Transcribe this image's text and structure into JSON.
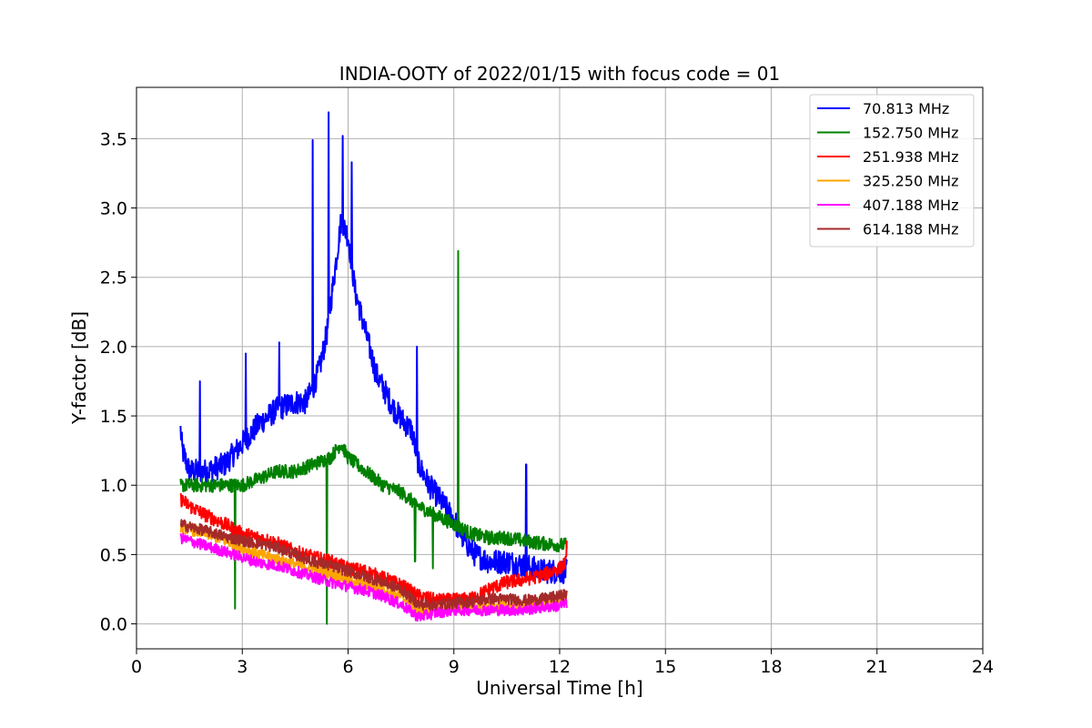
{
  "chart_data": {
    "type": "line",
    "title": "INDIA-OOTY of 2022/01/15 with focus code = 01",
    "xlabel": "Universal Time [h]",
    "ylabel": "Y-factor [dB]",
    "xlim": [
      0,
      24
    ],
    "ylim": [
      -0.18,
      3.87
    ],
    "xticks": [
      0,
      3,
      6,
      9,
      12,
      15,
      18,
      21,
      24
    ],
    "yticks": [
      0.0,
      0.5,
      1.0,
      1.5,
      2.0,
      2.5,
      3.0,
      3.5
    ],
    "ytick_labels": [
      "0.0",
      "0.5",
      "1.0",
      "1.5",
      "2.0",
      "2.5",
      "3.0",
      "3.5"
    ],
    "grid": true,
    "legend_position": "top-right",
    "series": [
      {
        "name": " 70.813 MHz",
        "color": "#0000ff",
        "noise": 0.09,
        "x": [
          1.25,
          1.3,
          1.5,
          2.0,
          2.5,
          3.0,
          3.5,
          4.0,
          4.5,
          4.8,
          5.0,
          5.2,
          5.4,
          5.6,
          5.8,
          6.0,
          6.2,
          6.5,
          6.8,
          7.0,
          7.3,
          7.6,
          7.8,
          8.0,
          8.3,
          8.6,
          9.0,
          9.3,
          9.6,
          10.0,
          10.5,
          11.0,
          11.5,
          12.0,
          12.2
        ],
        "y": [
          1.4,
          1.25,
          1.1,
          1.1,
          1.15,
          1.3,
          1.45,
          1.55,
          1.6,
          1.6,
          1.7,
          1.85,
          2.1,
          2.5,
          2.9,
          2.8,
          2.4,
          2.1,
          1.8,
          1.7,
          1.55,
          1.45,
          1.4,
          1.15,
          1.0,
          0.9,
          0.75,
          0.6,
          0.5,
          0.45,
          0.45,
          0.42,
          0.38,
          0.38,
          0.38
        ],
        "spikes": [
          [
            1.8,
            1.75
          ],
          [
            3.1,
            1.95
          ],
          [
            4.05,
            2.03
          ],
          [
            5.0,
            3.49
          ],
          [
            5.45,
            3.69
          ],
          [
            5.85,
            3.52
          ],
          [
            6.1,
            3.33
          ],
          [
            7.95,
            2.0
          ],
          [
            11.05,
            1.15
          ]
        ]
      },
      {
        "name": "152.750 MHz",
        "color": "#008000",
        "noise": 0.05,
        "x": [
          1.25,
          1.5,
          2.0,
          2.5,
          3.0,
          3.5,
          4.0,
          4.5,
          5.0,
          5.5,
          5.8,
          6.0,
          6.5,
          7.0,
          7.5,
          8.0,
          8.5,
          9.0,
          9.5,
          10.0,
          10.5,
          11.0,
          11.5,
          12.0,
          12.2
        ],
        "y": [
          1.0,
          1.0,
          1.0,
          1.0,
          1.0,
          1.05,
          1.1,
          1.1,
          1.15,
          1.2,
          1.3,
          1.2,
          1.1,
          1.0,
          0.95,
          0.85,
          0.78,
          0.72,
          0.65,
          0.62,
          0.62,
          0.6,
          0.58,
          0.57,
          0.57
        ],
        "spikes": [
          [
            9.12,
            2.69
          ],
          [
            5.4,
            0.0
          ],
          [
            2.8,
            0.11
          ],
          [
            8.4,
            0.4
          ],
          [
            7.9,
            0.45
          ]
        ]
      },
      {
        "name": "251.938 MHz",
        "color": "#ff0000",
        "noise": 0.05,
        "x": [
          1.25,
          1.5,
          2.0,
          2.5,
          3.0,
          3.5,
          4.0,
          4.5,
          5.0,
          5.5,
          6.0,
          6.5,
          7.0,
          7.5,
          8.0,
          8.5,
          9.0,
          9.5,
          10.0,
          10.5,
          11.0,
          11.5,
          12.0,
          12.2
        ],
        "y": [
          0.9,
          0.85,
          0.78,
          0.72,
          0.65,
          0.62,
          0.58,
          0.52,
          0.48,
          0.45,
          0.4,
          0.38,
          0.33,
          0.28,
          0.2,
          0.17,
          0.17,
          0.18,
          0.25,
          0.3,
          0.32,
          0.35,
          0.4,
          0.45
        ],
        "spikes": [
          [
            12.2,
            0.6
          ]
        ]
      },
      {
        "name": "325.250 MHz",
        "color": "#ffa500",
        "noise": 0.04,
        "x": [
          1.25,
          1.5,
          2.0,
          2.5,
          3.0,
          3.5,
          4.0,
          4.5,
          5.0,
          5.5,
          6.0,
          6.5,
          7.0,
          7.5,
          8.0,
          8.5,
          9.0,
          9.5,
          10.0,
          10.5,
          11.0,
          11.5,
          12.0,
          12.2
        ],
        "y": [
          0.7,
          0.68,
          0.65,
          0.6,
          0.55,
          0.5,
          0.47,
          0.43,
          0.4,
          0.36,
          0.32,
          0.28,
          0.25,
          0.2,
          0.1,
          0.1,
          0.12,
          0.12,
          0.12,
          0.13,
          0.13,
          0.15,
          0.16,
          0.18
        ],
        "spikes": []
      },
      {
        "name": "407.188 MHz",
        "color": "#ff00ff",
        "noise": 0.04,
        "x": [
          1.25,
          1.5,
          2.0,
          2.5,
          3.0,
          3.5,
          4.0,
          4.5,
          5.0,
          5.5,
          6.0,
          6.5,
          7.0,
          7.5,
          8.0,
          8.5,
          9.0,
          9.5,
          10.0,
          10.5,
          11.0,
          11.5,
          12.0,
          12.2
        ],
        "y": [
          0.62,
          0.6,
          0.56,
          0.52,
          0.48,
          0.44,
          0.42,
          0.38,
          0.34,
          0.3,
          0.27,
          0.24,
          0.2,
          0.14,
          0.05,
          0.08,
          0.1,
          0.1,
          0.1,
          0.1,
          0.1,
          0.12,
          0.13,
          0.15
        ],
        "spikes": []
      },
      {
        "name": "614.188 MHz",
        "color": "#a52a2a",
        "noise": 0.04,
        "x": [
          1.25,
          1.5,
          2.0,
          2.5,
          3.0,
          3.5,
          4.0,
          4.5,
          5.0,
          5.5,
          6.0,
          6.5,
          7.0,
          7.5,
          8.0,
          8.5,
          9.0,
          9.5,
          10.0,
          10.5,
          11.0,
          11.5,
          12.0,
          12.2
        ],
        "y": [
          0.72,
          0.7,
          0.67,
          0.63,
          0.6,
          0.58,
          0.55,
          0.5,
          0.45,
          0.42,
          0.38,
          0.34,
          0.3,
          0.25,
          0.14,
          0.14,
          0.15,
          0.16,
          0.18,
          0.18,
          0.17,
          0.18,
          0.2,
          0.22
        ],
        "spikes": []
      }
    ]
  }
}
